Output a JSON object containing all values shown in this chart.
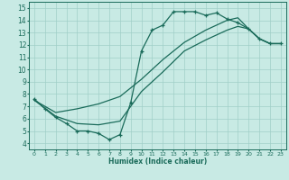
{
  "xlabel": "Humidex (Indice chaleur)",
  "xlim": [
    -0.5,
    23.5
  ],
  "ylim": [
    3.5,
    15.5
  ],
  "xticks": [
    0,
    1,
    2,
    3,
    4,
    5,
    6,
    7,
    8,
    9,
    10,
    11,
    12,
    13,
    14,
    15,
    16,
    17,
    18,
    19,
    20,
    21,
    22,
    23
  ],
  "yticks": [
    4,
    5,
    6,
    7,
    8,
    9,
    10,
    11,
    12,
    13,
    14,
    15
  ],
  "bg_color": "#c8eae4",
  "grid_color": "#a0cfc8",
  "line_color": "#1a6b5a",
  "line1_x": [
    0,
    1,
    2,
    3,
    4,
    5,
    6,
    7,
    8,
    9,
    10,
    11,
    12,
    13,
    14,
    15,
    16,
    17,
    18,
    19,
    20,
    21,
    22,
    23
  ],
  "line1_y": [
    7.6,
    6.8,
    6.1,
    5.6,
    5.0,
    5.0,
    4.8,
    4.3,
    4.7,
    7.3,
    11.5,
    13.2,
    13.6,
    14.7,
    14.7,
    14.7,
    14.4,
    14.6,
    14.1,
    13.8,
    13.3,
    12.5,
    12.1,
    12.1
  ],
  "line2_x": [
    0,
    2,
    4,
    6,
    8,
    10,
    12,
    14,
    16,
    18,
    19,
    20,
    21,
    22,
    23
  ],
  "line2_y": [
    7.5,
    6.5,
    6.8,
    7.2,
    7.8,
    9.2,
    10.8,
    12.2,
    13.2,
    14.0,
    14.2,
    13.3,
    12.5,
    12.1,
    12.1
  ],
  "line3_x": [
    0,
    2,
    4,
    6,
    8,
    10,
    12,
    14,
    16,
    18,
    19,
    20,
    21,
    22,
    23
  ],
  "line3_y": [
    7.5,
    6.2,
    5.6,
    5.5,
    5.8,
    8.2,
    9.8,
    11.5,
    12.4,
    13.2,
    13.5,
    13.3,
    12.5,
    12.1,
    12.1
  ]
}
